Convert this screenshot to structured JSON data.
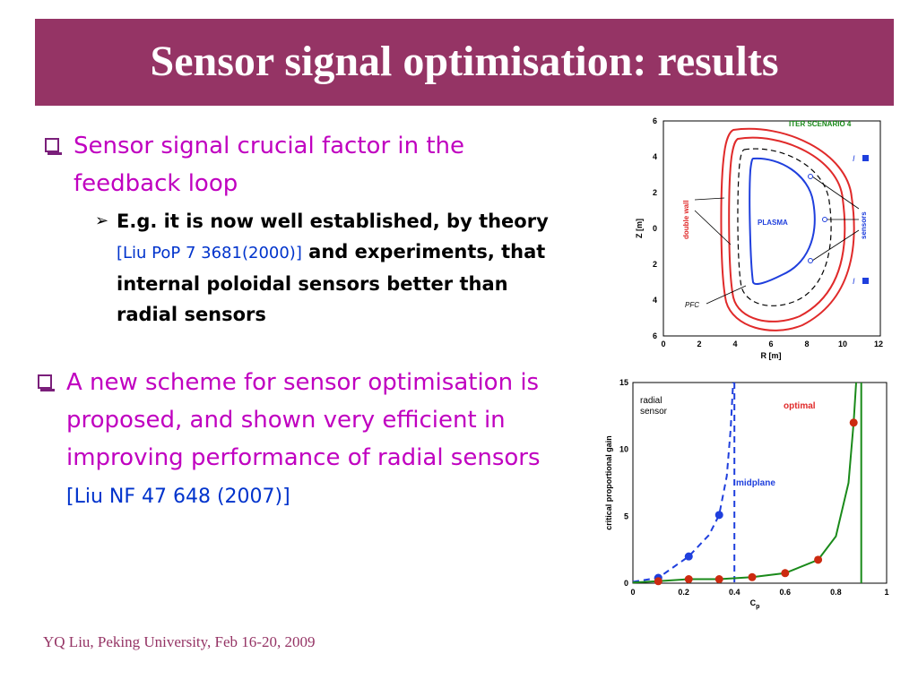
{
  "title": "Sensor signal optimisation: results",
  "bullets": [
    {
      "text": "Sensor signal crucial factor in the feedback loop"
    },
    {
      "text": "A new scheme for sensor optimisation is proposed, and shown very efficient in improving performance of radial sensors",
      "ref": "[Liu NF 47 648 (2007)]"
    }
  ],
  "sub_bullet": {
    "text_before": "E.g. it is now well established, by theory",
    "ref": "[Liu PoP 7 3681(2000)]",
    "text_after": "and experiments, that internal poloidal sensors better than radial sensors"
  },
  "footer": "YQ Liu, Peking University, Feb 16-20, 2009",
  "colors": {
    "title_bar": "#953465",
    "bullet_text": "#c000c0",
    "reference": "#0033cc"
  },
  "figure_top": {
    "scenario_label": "ITER SCENARIO 4",
    "plasma_label": "PLASMA",
    "double_wall_label": "double wall",
    "sensors_label": "sensors",
    "pfc_label": "PFC",
    "current_label": "I",
    "xlabel": "R [m]",
    "ylabel": "Z [m]",
    "x_ticks": [
      "0",
      "2",
      "4",
      "6",
      "8",
      "10",
      "12"
    ],
    "y_ticks": [
      "6",
      "4",
      "2",
      "0",
      "2",
      "4",
      "6"
    ]
  },
  "chart_data": {
    "type": "line",
    "xlabel": "C",
    "xlabel_subscript": "p",
    "ylabel": "critical proportional gain",
    "xlim": [
      0,
      1
    ],
    "ylim": [
      0,
      15
    ],
    "x_ticks": [
      "0",
      "0.2",
      "0.4",
      "0.6",
      "0.8",
      "1"
    ],
    "y_ticks": [
      "0",
      "5",
      "10",
      "15"
    ],
    "annotations": [
      "radial sensor",
      "optimal",
      "midplane"
    ],
    "series": [
      {
        "style": "dashed",
        "color": "#1f3fdd",
        "points": [
          [
            0.1,
            0.4
          ],
          [
            0.22,
            2.0
          ],
          [
            0.34,
            5.1
          ]
        ],
        "curve": [
          [
            0,
            0.1
          ],
          [
            0.1,
            0.4
          ],
          [
            0.22,
            2.0
          ],
          [
            0.3,
            3.6
          ],
          [
            0.34,
            5.1
          ],
          [
            0.37,
            8.0
          ],
          [
            0.385,
            11.5
          ],
          [
            0.395,
            15
          ]
        ],
        "asymptote_x": 0.4
      },
      {
        "style": "solid",
        "color": "#1a8a1a",
        "points": [
          [
            0.1,
            0.15
          ],
          [
            0.22,
            0.3
          ],
          [
            0.34,
            0.3
          ],
          [
            0.47,
            0.45
          ],
          [
            0.6,
            0.75
          ],
          [
            0.73,
            1.75
          ],
          [
            0.87,
            12.0
          ]
        ],
        "curve": [
          [
            0,
            0.05
          ],
          [
            0.1,
            0.15
          ],
          [
            0.22,
            0.3
          ],
          [
            0.34,
            0.3
          ],
          [
            0.47,
            0.45
          ],
          [
            0.6,
            0.75
          ],
          [
            0.73,
            1.75
          ],
          [
            0.8,
            3.5
          ],
          [
            0.85,
            7.5
          ],
          [
            0.87,
            12.0
          ],
          [
            0.88,
            15
          ]
        ],
        "asymptote_x": 0.9
      }
    ]
  }
}
